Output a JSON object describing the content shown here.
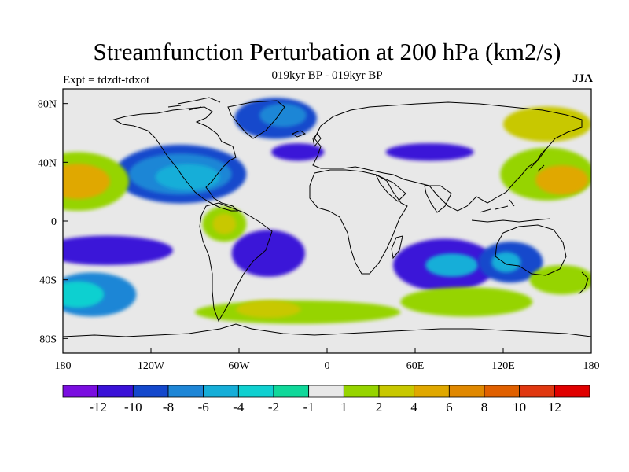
{
  "header": {
    "title": "Streamfunction Perturbation at 200 hPa (km2/s)",
    "subtitle": "019kyr BP - 019kyr BP",
    "experiment": "Expt = tdzdt-tdxot",
    "season": "JJA"
  },
  "chart_data": {
    "type": "heatmap",
    "title": "Streamfunction Perturbation at 200 hPa (km2/s)",
    "units": "km2/s",
    "projection": "cylindrical equidistant",
    "xlim": [
      -180,
      180
    ],
    "ylim": [
      -90,
      90
    ],
    "x_ticks": [
      {
        "value": -180,
        "label": "180"
      },
      {
        "value": -120,
        "label": "120W"
      },
      {
        "value": -60,
        "label": "60W"
      },
      {
        "value": 0,
        "label": "0"
      },
      {
        "value": 60,
        "label": "60E"
      },
      {
        "value": 120,
        "label": "120E"
      },
      {
        "value": 180,
        "label": "180"
      }
    ],
    "y_ticks": [
      {
        "value": 80,
        "label": "80N"
      },
      {
        "value": 40,
        "label": "40N"
      },
      {
        "value": 0,
        "label": "0"
      },
      {
        "value": -40,
        "label": "40S"
      },
      {
        "value": -80,
        "label": "80S"
      }
    ],
    "colorbar": {
      "colors": [
        "#7a0ee0",
        "#3a12d8",
        "#1448cc",
        "#1e86d6",
        "#16aed8",
        "#10d0d0",
        "#10d89a",
        "#e8e8e8",
        "#96d400",
        "#c8c800",
        "#e0a800",
        "#e08800",
        "#e06000",
        "#e03810",
        "#e00000"
      ],
      "labels": [
        "-12",
        "-10",
        "-8",
        "-6",
        "-4",
        "-2",
        "-1",
        "1",
        "2",
        "4",
        "6",
        "8",
        "10",
        "12"
      ]
    },
    "features": [
      {
        "name": "north-atlantic-high-latitude-low",
        "lon": -35,
        "lat": 70,
        "rx": 28,
        "ry": 14,
        "level": 2
      },
      {
        "name": "north-atlantic-high-latitude-low-core",
        "lon": -30,
        "lat": 72,
        "rx": 16,
        "ry": 8,
        "level": 3
      },
      {
        "name": "north-america-low",
        "lon": -100,
        "lat": 32,
        "rx": 45,
        "ry": 20,
        "level": 2
      },
      {
        "name": "north-america-low-mid",
        "lon": -100,
        "lat": 32,
        "rx": 35,
        "ry": 14,
        "level": 3
      },
      {
        "name": "north-america-low-core",
        "lon": -95,
        "lat": 30,
        "rx": 22,
        "ry": 9,
        "level": 4
      },
      {
        "name": "northeast-atlantic-low",
        "lon": -20,
        "lat": 47,
        "rx": 18,
        "ry": 6,
        "level": 1
      },
      {
        "name": "eurasia-midlat-low",
        "lon": 70,
        "lat": 47,
        "rx": 30,
        "ry": 6,
        "level": 1
      },
      {
        "name": "east-pacific-high",
        "lon": -170,
        "lat": 27,
        "rx": 35,
        "ry": 20,
        "level": 8
      },
      {
        "name": "east-pacific-high-core",
        "lon": -170,
        "lat": 27,
        "rx": 22,
        "ry": 12,
        "level": 10
      },
      {
        "name": "nw-pacific-high",
        "lon": 150,
        "lat": 32,
        "rx": 32,
        "ry": 18,
        "level": 8
      },
      {
        "name": "nw-pacific-high-core",
        "lon": 160,
        "lat": 28,
        "rx": 18,
        "ry": 10,
        "level": 10
      },
      {
        "name": "arctic-pacific-high",
        "lon": 150,
        "lat": 66,
        "rx": 30,
        "ry": 12,
        "level": 9
      },
      {
        "name": "south-america-high",
        "lon": -70,
        "lat": -2,
        "rx": 15,
        "ry": 12,
        "level": 8
      },
      {
        "name": "south-america-high-core",
        "lon": -70,
        "lat": -2,
        "rx": 8,
        "ry": 7,
        "level": 9
      },
      {
        "name": "south-atlantic-low",
        "lon": -40,
        "lat": -22,
        "rx": 25,
        "ry": 16,
        "level": 1
      },
      {
        "name": "south-pacific-low-belt",
        "lon": -150,
        "lat": -20,
        "rx": 45,
        "ry": 10,
        "level": 1
      },
      {
        "name": "southeast-pacific-low",
        "lon": -160,
        "lat": -50,
        "rx": 30,
        "ry": 15,
        "level": 3
      },
      {
        "name": "southeast-pacific-low-core",
        "lon": -170,
        "lat": -50,
        "rx": 18,
        "ry": 9,
        "level": 5
      },
      {
        "name": "indian-ocean-low",
        "lon": 80,
        "lat": -30,
        "rx": 35,
        "ry": 18,
        "level": 1
      },
      {
        "name": "indian-ocean-low-core",
        "lon": 85,
        "lat": -30,
        "rx": 18,
        "ry": 8,
        "level": 4
      },
      {
        "name": "australia-low",
        "lon": 125,
        "lat": -28,
        "rx": 22,
        "ry": 14,
        "level": 2
      },
      {
        "name": "australia-low-core",
        "lon": 122,
        "lat": -28,
        "rx": 10,
        "ry": 7,
        "level": 4
      },
      {
        "name": "southern-ocean-high-belt",
        "lon": -20,
        "lat": -62,
        "rx": 70,
        "ry": 8,
        "level": 8
      },
      {
        "name": "southern-ocean-high-core",
        "lon": -40,
        "lat": -60,
        "rx": 22,
        "ry": 6,
        "level": 9
      },
      {
        "name": "south-indian-high",
        "lon": 95,
        "lat": -55,
        "rx": 45,
        "ry": 10,
        "level": 8
      },
      {
        "name": "tasman-high",
        "lon": 160,
        "lat": -40,
        "rx": 22,
        "ry": 10,
        "level": 8
      }
    ],
    "note": "Feature lon/lat/rx/ry are in degrees; level indexes the colorbar."
  }
}
